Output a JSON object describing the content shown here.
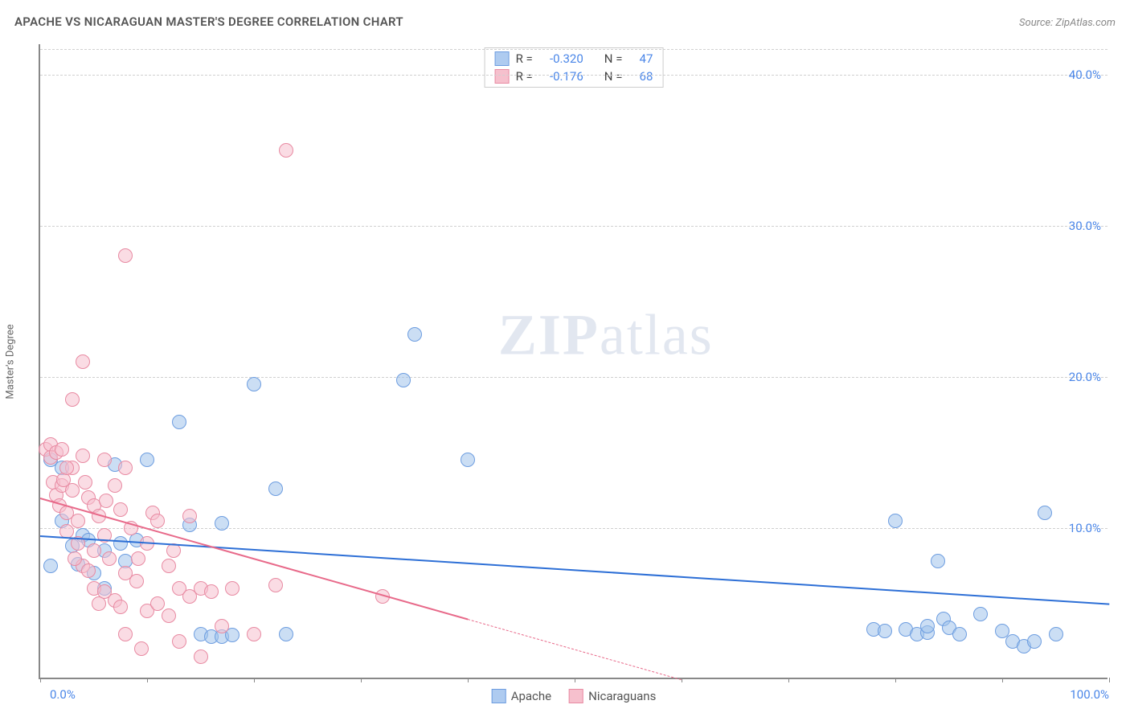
{
  "title": "APACHE VS NICARAGUAN MASTER'S DEGREE CORRELATION CHART",
  "source": "Source: ZipAtlas.com",
  "watermark": {
    "text1": "ZIP",
    "text2": "atlas"
  },
  "chart": {
    "type": "scatter",
    "background_color": "#ffffff",
    "grid_color": "#d0d0d0",
    "axis_color": "#888888",
    "y_axis_title": "Master's Degree",
    "y_axis_title_fontsize": 13,
    "xlim": [
      0,
      100
    ],
    "ylim": [
      0,
      42
    ],
    "y_ticks": [
      10,
      20,
      30,
      40
    ],
    "y_tick_labels": [
      "10.0%",
      "20.0%",
      "30.0%",
      "40.0%"
    ],
    "y_tick_color": "#4a86e8",
    "y_tick_fontsize": 15,
    "x_ticks": [
      0,
      10,
      20,
      30,
      40,
      50,
      60,
      70,
      80,
      90,
      100
    ],
    "x_tick_labels_shown": {
      "0": "0.0%",
      "100": "100.0%"
    },
    "x_tick_color": "#4a86e8",
    "legend_top": [
      {
        "swatch_fill": "#aecbf0",
        "swatch_border": "#6d9de0",
        "R": "-0.320",
        "N": "47"
      },
      {
        "swatch_fill": "#f6c0cd",
        "swatch_border": "#e88aa2",
        "R": "-0.176",
        "N": "68"
      }
    ],
    "legend_bottom": [
      {
        "swatch_fill": "#aecbf0",
        "swatch_border": "#6d9de0",
        "label": "Apache"
      },
      {
        "swatch_fill": "#f6c0cd",
        "swatch_border": "#e88aa2",
        "label": "Nicaraguans"
      }
    ],
    "series": [
      {
        "name": "Apache",
        "marker_fill": "rgba(160,195,235,0.55)",
        "marker_border": "#6d9de0",
        "marker_radius": 9,
        "trend_color": "#2d6fd6",
        "trend_solid_range": [
          0,
          100
        ],
        "trend_y_at_x0": 9.5,
        "trend_y_at_x100": 5.0,
        "points": [
          [
            1,
            14.5
          ],
          [
            1,
            7.5
          ],
          [
            2,
            10.5
          ],
          [
            3,
            8.8
          ],
          [
            3.5,
            7.6
          ],
          [
            4,
            9.5
          ],
          [
            4.5,
            9.2
          ],
          [
            5,
            7.0
          ],
          [
            6,
            8.5
          ],
          [
            6,
            6.0
          ],
          [
            7,
            14.2
          ],
          [
            7.5,
            9.0
          ],
          [
            8,
            7.8
          ],
          [
            9,
            9.2
          ],
          [
            10,
            14.5
          ],
          [
            13,
            17.0
          ],
          [
            14,
            10.2
          ],
          [
            15,
            3.0
          ],
          [
            16,
            2.8
          ],
          [
            17,
            10.3
          ],
          [
            17,
            2.8
          ],
          [
            18,
            2.9
          ],
          [
            20,
            19.5
          ],
          [
            22,
            12.6
          ],
          [
            23,
            3.0
          ],
          [
            34,
            19.8
          ],
          [
            35,
            22.8
          ],
          [
            40,
            14.5
          ],
          [
            78,
            3.3
          ],
          [
            79,
            3.2
          ],
          [
            80,
            10.5
          ],
          [
            81,
            3.3
          ],
          [
            82,
            3.0
          ],
          [
            83,
            3.1
          ],
          [
            84,
            7.8
          ],
          [
            84.5,
            4.0
          ],
          [
            85,
            3.4
          ],
          [
            86,
            3.0
          ],
          [
            88,
            4.3
          ],
          [
            90,
            3.2
          ],
          [
            91,
            2.5
          ],
          [
            92,
            2.2
          ],
          [
            93,
            2.5
          ],
          [
            94,
            11.0
          ],
          [
            95,
            3.0
          ],
          [
            83,
            3.5
          ],
          [
            2,
            14.0
          ]
        ]
      },
      {
        "name": "Nicaraguans",
        "marker_fill": "rgba(246,192,205,0.55)",
        "marker_border": "#e88aa2",
        "marker_radius": 9,
        "trend_color": "#e86a8a",
        "trend_solid_range": [
          0,
          40
        ],
        "trend_dash_range": [
          40,
          60
        ],
        "trend_y_at_x0": 12.0,
        "trend_y_at_x100": -8.0,
        "points": [
          [
            0.5,
            15.2
          ],
          [
            1,
            15.5
          ],
          [
            1,
            14.7
          ],
          [
            1.2,
            13.0
          ],
          [
            1.5,
            15.0
          ],
          [
            1.5,
            12.2
          ],
          [
            1.8,
            11.5
          ],
          [
            2,
            15.2
          ],
          [
            2,
            12.8
          ],
          [
            2.2,
            13.2
          ],
          [
            2.5,
            9.8
          ],
          [
            2.5,
            11.0
          ],
          [
            3,
            14.0
          ],
          [
            3,
            12.5
          ],
          [
            3,
            18.5
          ],
          [
            3.5,
            9.0
          ],
          [
            3.5,
            10.5
          ],
          [
            4,
            14.8
          ],
          [
            4,
            7.5
          ],
          [
            4,
            21.0
          ],
          [
            4.5,
            7.2
          ],
          [
            4.5,
            12.0
          ],
          [
            5,
            6.0
          ],
          [
            5,
            8.5
          ],
          [
            5,
            11.5
          ],
          [
            5.5,
            5.0
          ],
          [
            5.5,
            10.8
          ],
          [
            6,
            14.5
          ],
          [
            6,
            9.5
          ],
          [
            6,
            5.8
          ],
          [
            6.5,
            8.0
          ],
          [
            7,
            12.8
          ],
          [
            7,
            5.2
          ],
          [
            7.5,
            11.2
          ],
          [
            7.5,
            4.8
          ],
          [
            8,
            14.0
          ],
          [
            8,
            7.0
          ],
          [
            8,
            3.0
          ],
          [
            8,
            28.0
          ],
          [
            8.5,
            10.0
          ],
          [
            9,
            6.5
          ],
          [
            9.5,
            2.0
          ],
          [
            10,
            4.5
          ],
          [
            10,
            9.0
          ],
          [
            10.5,
            11.0
          ],
          [
            11,
            5.0
          ],
          [
            11,
            10.5
          ],
          [
            12,
            4.2
          ],
          [
            12,
            7.5
          ],
          [
            12.5,
            8.5
          ],
          [
            13,
            6.0
          ],
          [
            13,
            2.5
          ],
          [
            14,
            5.5
          ],
          [
            14,
            10.8
          ],
          [
            15,
            6.0
          ],
          [
            15,
            1.5
          ],
          [
            16,
            5.8
          ],
          [
            17,
            3.5
          ],
          [
            18,
            6.0
          ],
          [
            20,
            3.0
          ],
          [
            22,
            6.2
          ],
          [
            23,
            35.0
          ],
          [
            32,
            5.5
          ],
          [
            2.5,
            14.0
          ],
          [
            3.2,
            8.0
          ],
          [
            4.2,
            13.0
          ],
          [
            6.2,
            11.8
          ],
          [
            9.2,
            8.0
          ]
        ]
      }
    ]
  }
}
